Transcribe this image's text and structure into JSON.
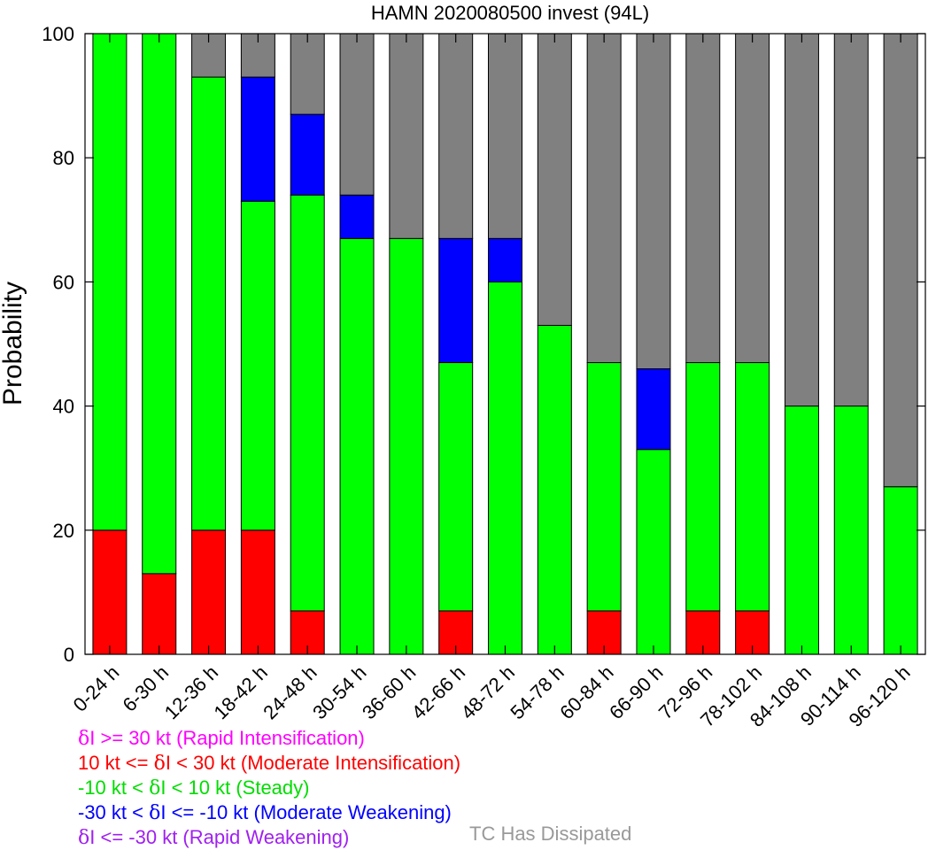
{
  "chart_data": {
    "type": "bar",
    "stacked": true,
    "title": "HAMN 2020080500 invest (94L)",
    "ylabel": "Probability",
    "xlabel": "",
    "ylim": [
      0,
      100
    ],
    "yticks": [
      0,
      20,
      40,
      60,
      80,
      100
    ],
    "grid": false,
    "categories": [
      "0-24 h",
      "6-30 h",
      "12-36 h",
      "18-42 h",
      "24-48 h",
      "30-54 h",
      "36-60 h",
      "42-66 h",
      "48-72 h",
      "54-78 h",
      "60-84 h",
      "66-90 h",
      "72-96 h",
      "78-102 h",
      "84-108 h",
      "90-114 h",
      "96-120 h"
    ],
    "series": [
      {
        "name": "10 kt <= δI < 30 kt (Moderate Intensification)",
        "color": "#ff0000",
        "values": [
          20,
          13,
          20,
          20,
          7,
          0,
          0,
          7,
          0,
          0,
          7,
          0,
          7,
          7,
          0,
          0,
          0
        ]
      },
      {
        "name": "-10 kt < δI < 10 kt (Steady)",
        "color": "#00ff00",
        "values": [
          80,
          87,
          73,
          53,
          67,
          67,
          67,
          40,
          60,
          53,
          40,
          33,
          40,
          40,
          40,
          40,
          27
        ]
      },
      {
        "name": "-30 kt < δI <= -10 kt (Moderate Weakening)",
        "color": "#0000ff",
        "values": [
          0,
          0,
          0,
          20,
          13,
          7,
          0,
          20,
          7,
          0,
          0,
          13,
          0,
          0,
          0,
          0,
          0
        ]
      },
      {
        "name": "TC Has Dissipated",
        "color": "#808080",
        "values": [
          0,
          0,
          7,
          7,
          13,
          26,
          33,
          33,
          33,
          47,
          53,
          54,
          53,
          53,
          60,
          60,
          73
        ]
      }
    ],
    "legend": {
      "placement": "bottom-left",
      "items": [
        {
          "symbol": "δ",
          "text": "I >= 30 kt (Rapid Intensification)",
          "color": "#ff00ff"
        },
        {
          "prefix": "10 kt <= ",
          "symbol": "δ",
          "text": "I < 30 kt (Moderate Intensification)",
          "color": "#ff0000"
        },
        {
          "prefix": "-10 kt < ",
          "symbol": "δ",
          "text": "I < 10 kt (Steady)",
          "color": "#00dd00"
        },
        {
          "prefix": "-30 kt < ",
          "symbol": "δ",
          "text": "I <= -10 kt (Moderate Weakening)",
          "color": "#0000ff"
        },
        {
          "symbol": "δ",
          "text": "I <= -30 kt (Rapid Weakening)",
          "color": "#a020f0"
        }
      ],
      "dissipated": {
        "text": "TC Has Dissipated",
        "color": "#999999"
      }
    }
  }
}
